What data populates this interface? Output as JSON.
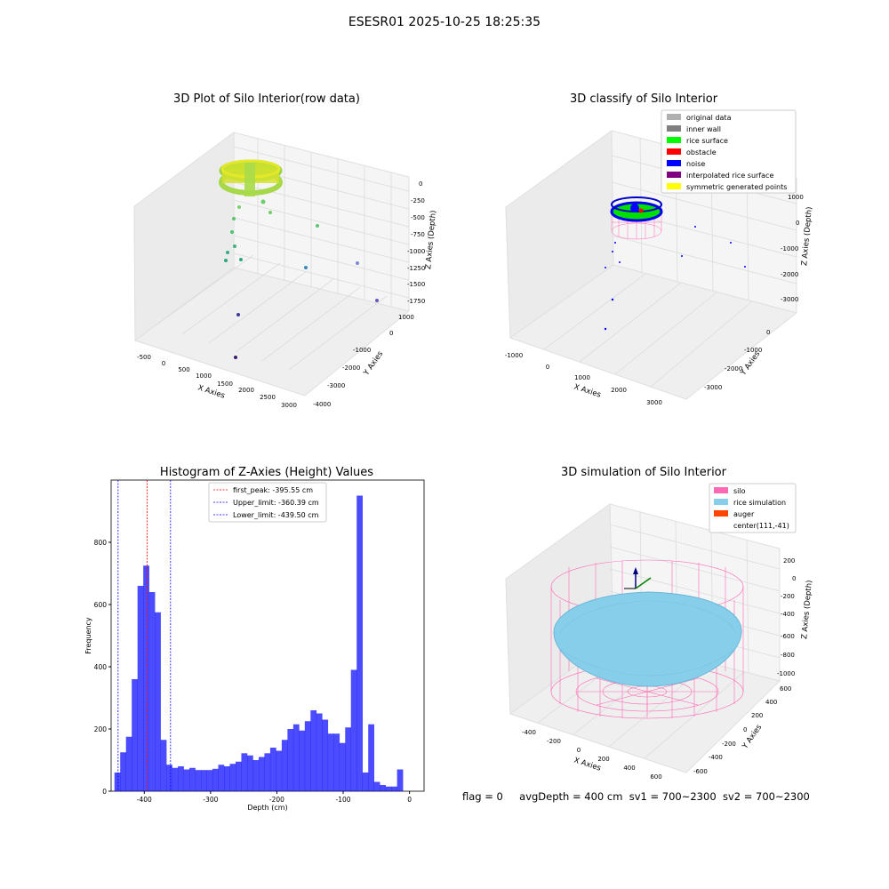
{
  "figure": {
    "title": "ESESR01 2025-10-25 18:25:35"
  },
  "panels": {
    "raw": {
      "title": "3D Plot of Silo Interior(row data)",
      "xlabel": "X Axies",
      "ylabel": "Y Axies",
      "zlabel": "Z Axies (Depth)",
      "x_ticks": [
        "-500",
        "0",
        "500",
        "1000",
        "1500",
        "2000",
        "2500",
        "3000"
      ],
      "y_ticks": [
        "1000",
        "0",
        "-1000",
        "-2000",
        "-3000",
        "-4000"
      ],
      "z_ticks": [
        "0",
        "-250",
        "-500",
        "-750",
        "-1000",
        "-1250",
        "-1500",
        "-1750"
      ]
    },
    "classify": {
      "title": "3D classify of Silo Interior",
      "xlabel": "X Axies",
      "ylabel": "Y Axies",
      "zlabel": "Z Axies (Depth)",
      "x_ticks": [
        "-1000",
        "0",
        "1000",
        "2000",
        "3000"
      ],
      "y_ticks": [
        "0",
        "-1000",
        "-2000",
        "-3000"
      ],
      "z_ticks": [
        "1000",
        "0",
        "-1000",
        "-2000",
        "-3000"
      ],
      "legend": [
        {
          "label": "original data",
          "color": "#b0b0b0"
        },
        {
          "label": "inner wall",
          "color": "#808080"
        },
        {
          "label": "rice surface",
          "color": "#00ff00"
        },
        {
          "label": "obstacle",
          "color": "#ff0000"
        },
        {
          "label": "noise",
          "color": "#0000ff"
        },
        {
          "label": "interpolated rice surface",
          "color": "#800080"
        },
        {
          "label": "symmetric generated points",
          "color": "#ffff00"
        }
      ]
    },
    "simulation": {
      "title": "3D simulation of Silo Interior",
      "xlabel": "X Axies",
      "ylabel": "Y Axies",
      "zlabel": "Z Axies (Depth)",
      "x_ticks": [
        "-400",
        "-200",
        "0",
        "200",
        "400",
        "600"
      ],
      "y_ticks": [
        "600",
        "400",
        "200",
        "0",
        "-200",
        "-400",
        "-600"
      ],
      "z_ticks": [
        "200",
        "0",
        "-200",
        "-400",
        "-600",
        "-800",
        "-1000"
      ],
      "legend": [
        {
          "label": "silo",
          "color": "#ff69b4"
        },
        {
          "label": "rice simulation",
          "color": "#87ceeb"
        },
        {
          "label": "auger",
          "color": "#ff4500"
        },
        {
          "label": "center(111,-41)",
          "color": ""
        }
      ]
    }
  },
  "chart_data": [
    {
      "type": "bar",
      "title": "Histogram of Z-Axies (Height) Values",
      "xlabel": "Depth (cm)",
      "ylabel": "Frequency",
      "xlim": [
        -450,
        22
      ],
      "ylim": [
        0,
        1000
      ],
      "x_ticks": [
        -400,
        -300,
        -200,
        -100,
        0
      ],
      "y_ticks": [
        0,
        200,
        400,
        600,
        800
      ],
      "bar_color": "#0000ff",
      "bin_start": -445,
      "bin_width": 8.7,
      "values": [
        60,
        125,
        175,
        360,
        660,
        725,
        640,
        575,
        165,
        85,
        75,
        80,
        70,
        75,
        68,
        68,
        68,
        72,
        85,
        80,
        88,
        95,
        122,
        115,
        100,
        110,
        122,
        140,
        130,
        165,
        200,
        215,
        195,
        225,
        260,
        250,
        230,
        185,
        185,
        155,
        205,
        390,
        950,
        60,
        215,
        30,
        20,
        15,
        15,
        70
      ],
      "lines": [
        {
          "label": "first_peak: -395.55 cm",
          "x": -395.55,
          "color": "#ff0000"
        },
        {
          "label": "Upper_limit: -360.39 cm",
          "x": -360.39,
          "color": "#0000ff"
        },
        {
          "label": "Lower_limit: -439.50 cm",
          "x": -439.5,
          "color": "#0000ff"
        }
      ],
      "legend_position": "top-center"
    }
  ],
  "footer": {
    "flag": "flag = 0",
    "avg": "avgDepth = 400 cm",
    "sv1": "sv1 = 700~2300",
    "sv2": "sv2 = 700~2300"
  }
}
